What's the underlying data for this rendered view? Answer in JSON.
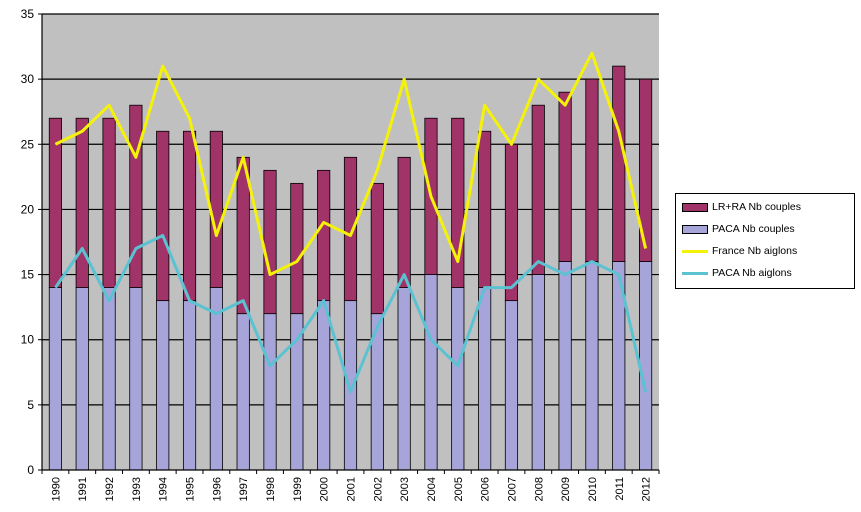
{
  "chart_data": {
    "type": "bar",
    "categories": [
      "1990",
      "1991",
      "1992",
      "1993",
      "1994",
      "1995",
      "1996",
      "1997",
      "1998",
      "1999",
      "2000",
      "2001",
      "2002",
      "2003",
      "2004",
      "2005",
      "2006",
      "2007",
      "2008",
      "2009",
      "2010",
      "2011",
      "2012"
    ],
    "ylim": [
      0,
      35
    ],
    "yticks": [
      0,
      5,
      10,
      15,
      20,
      25,
      30,
      35
    ],
    "stacked": true,
    "grid": true,
    "legend_position": "right",
    "series": [
      {
        "name": "PACA Nb couples",
        "kind": "bar",
        "color": "#a6a4d8",
        "values": [
          14,
          14,
          14,
          14,
          13,
          13,
          14,
          12,
          12,
          12,
          13,
          13,
          12,
          14,
          15,
          14,
          14,
          13,
          15,
          16,
          16,
          16,
          16
        ]
      },
      {
        "name": "LR+RA Nb couples",
        "kind": "bar",
        "color": "#a03468",
        "values": [
          13,
          13,
          13,
          14,
          13,
          13,
          12,
          12,
          11,
          10,
          10,
          11,
          10,
          10,
          12,
          13,
          12,
          12,
          13,
          13,
          14,
          15,
          14
        ]
      },
      {
        "name": "France Nb aiglons",
        "kind": "line",
        "color": "#f5f20a",
        "values": [
          25,
          26,
          28,
          24,
          31,
          27,
          18,
          24,
          15,
          16,
          19,
          18,
          23,
          30,
          21,
          16,
          28,
          25,
          30,
          28,
          32,
          26,
          17
        ]
      },
      {
        "name": "PACA Nb aiglons",
        "kind": "line",
        "color": "#5bc2d2",
        "values": [
          14,
          17,
          13,
          17,
          18,
          13,
          12,
          13,
          8,
          10,
          13,
          6,
          11,
          15,
          10,
          8,
          14,
          14,
          16,
          15,
          16,
          15,
          6
        ]
      }
    ],
    "legend_order": [
      "LR+RA Nb couples",
      "PACA Nb couples",
      "France Nb aiglons",
      "PACA Nb aiglons"
    ]
  }
}
